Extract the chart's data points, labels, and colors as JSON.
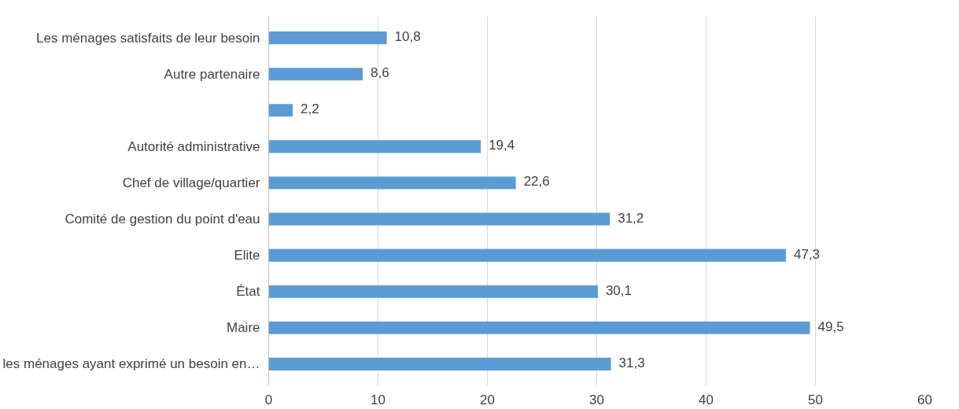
{
  "chart_data": {
    "type": "bar",
    "orientation": "horizontal",
    "categories": [
      "Les ménages satisfaits de leur besoin",
      "Autre partenaire",
      null,
      "Autorité administrative",
      "Chef de village/quartier",
      "Comité de gestion du point d'eau",
      "Elite",
      "État",
      "Maire",
      "les ménages ayant exprimé un besoin en…"
    ],
    "values": [
      10.8,
      8.6,
      2.2,
      19.4,
      22.6,
      31.2,
      47.3,
      30.1,
      49.5,
      31.3
    ],
    "value_labels": [
      "10,8",
      "8,6",
      "2,2",
      "19,4",
      "22,6",
      "31,2",
      "47,3",
      "30,1",
      "49,5",
      "31,3"
    ],
    "color": "#5b9bd5",
    "xlim": [
      0,
      60
    ],
    "xticks": [
      0,
      10,
      20,
      30,
      40,
      50,
      60
    ],
    "grid": "x"
  }
}
